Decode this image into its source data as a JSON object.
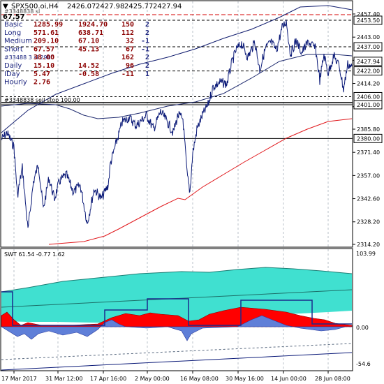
{
  "window": {
    "symbol_line": "SPX500.oi,H4",
    "ohlc": [
      "2426.07",
      "2427.98",
      "2425.77",
      "2427.94"
    ],
    "subline": "#3348838 sl",
    "subline_value": "67.57"
  },
  "stats_table": {
    "rows": [
      {
        "label": "Basic",
        "v1": "1285.99",
        "v2": "1924.70",
        "v3": "150",
        "v4": "2"
      },
      {
        "label": "Long",
        "v1": "571.61",
        "v2": "638.71",
        "v3": "112",
        "v4": "2"
      },
      {
        "label": "Medium",
        "v1": "209.10",
        "v2": "67.10",
        "v3": "32",
        "v4": "-1"
      },
      {
        "label": "Short",
        "v1": "67.57",
        "v2": "45.13",
        "v3": "67",
        "v4": "-1"
      },
      {
        "label": "#33488 3 sl 2980",
        "v1": "38.00",
        "v2": "",
        "v3": "162",
        "v4": "2"
      },
      {
        "label": "Daily",
        "v1": "15.10",
        "v2": "14.52",
        "v3": "96",
        "v4": "2"
      },
      {
        "label": "IDay",
        "v1": "5.47",
        "v2": "-0.58",
        "v3": "-11",
        "v4": "1"
      },
      {
        "label": "Hourly",
        "v1": "2.76",
        "v2": "",
        "v3": "",
        "v4": ""
      }
    ]
  },
  "order_line": {
    "label": "#3348838 sell stop 100.00"
  },
  "price_axis": {
    "ticks": [
      "2457.40",
      "2443.00",
      "2428.60",
      "2414.20",
      "2399.80",
      "2385.80",
      "2371.40",
      "2357.00",
      "2342.60",
      "2328.20",
      "2314.20"
    ],
    "price_tags": [
      {
        "text": "2453.50",
        "value": 2453.5,
        "bg": "#ffffff",
        "fg": "#000000"
      },
      {
        "text": "2437.00",
        "value": 2437.0,
        "bg": "#ffffff",
        "fg": "#000000"
      },
      {
        "text": "2427.94",
        "value": 2427.94,
        "bg": "#ffffff",
        "fg": "#000000"
      },
      {
        "text": "2422.00",
        "value": 2422.0,
        "bg": "#ffffff",
        "fg": "#000000"
      },
      {
        "text": "2406.00",
        "value": 2406.0,
        "bg": "#ffffff",
        "fg": "#000000"
      },
      {
        "text": "2401.00",
        "value": 2401.0,
        "bg": "#ffffff",
        "fg": "#000000"
      },
      {
        "text": "2380.00",
        "value": 2380.0,
        "bg": "#ffffff",
        "fg": "#000000"
      }
    ]
  },
  "indicator": {
    "label": "SWT 61.54 -0.77 1.62",
    "axis_ticks": [
      "103.99",
      "0.00",
      "-54.6"
    ]
  },
  "time_axis": {
    "labels": [
      "17 Mar 2017",
      "31 Mar 12:00",
      "17 Apr 16:00",
      "2 May 00:00",
      "16 May 08:00",
      "30 May 16:00",
      "14 Jun 00:00",
      "28 Jun 08:00"
    ]
  },
  "colors": {
    "price_line": "#0b1a78",
    "channel_line": "#101c6e",
    "ma_red": "#e0161a",
    "dashed_red": "#d40000",
    "teal": "#40e0d0",
    "indicator_red": "#ff0000",
    "indicator_blue": "#5f7fd8",
    "box_line": "#1a2a8c"
  },
  "chart_data": {
    "type": "line",
    "title": "SPX500.oi,H4",
    "x": [
      "17 Mar 2017",
      "31 Mar 12:00",
      "17 Apr 16:00",
      "2 May 00:00",
      "16 May 08:00",
      "30 May 16:00",
      "14 Jun 00:00",
      "28 Jun 08:00"
    ],
    "series": [
      {
        "name": "SPX500.oi,H4",
        "values": [
          2390,
          2345,
          2350,
          2392,
          2378,
          2432,
          2445,
          2420
        ]
      }
    ],
    "ylim": [
      2314.2,
      2460.0
    ],
    "grid": true
  }
}
